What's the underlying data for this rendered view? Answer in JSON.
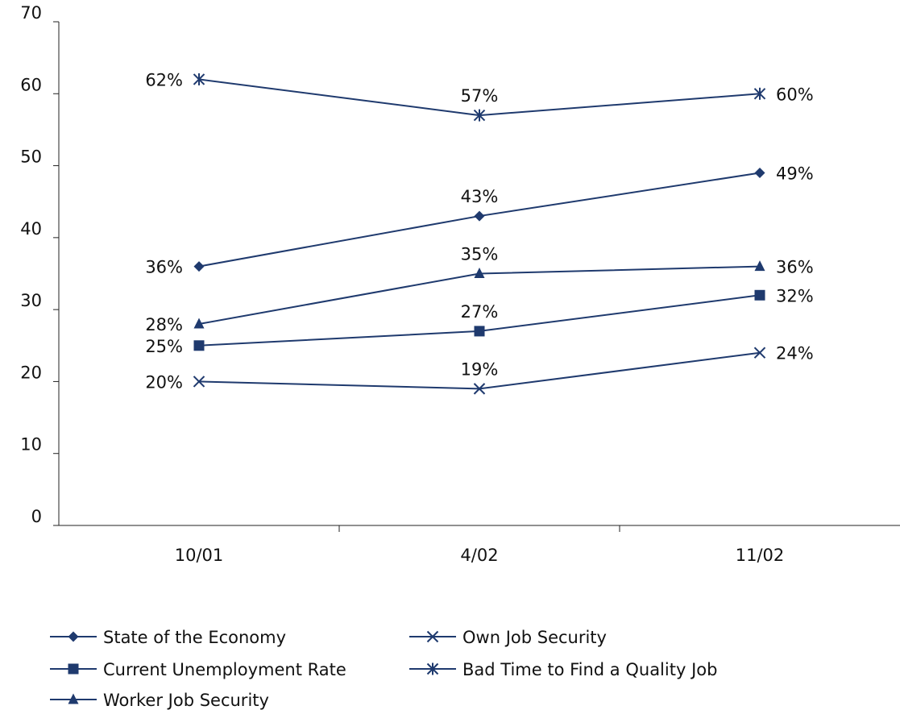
{
  "chart_data": {
    "type": "line",
    "title": "",
    "xlabel": "",
    "ylabel": "",
    "categories": [
      "10/01",
      "4/02",
      "11/02"
    ],
    "ylim": [
      0,
      70
    ],
    "yticks": [
      "0",
      "10",
      "20",
      "30",
      "40",
      "50",
      "60",
      "70"
    ],
    "grid": false,
    "legend_position": "bottom",
    "line_color": "#1f3a6e",
    "series": [
      {
        "name": "State of the Economy",
        "marker": "diamond",
        "values": [
          36,
          43,
          49
        ],
        "labels": [
          "36%",
          "43%",
          "49%"
        ]
      },
      {
        "name": "Current Unemployment Rate",
        "marker": "square",
        "values": [
          25,
          27,
          32
        ],
        "labels": [
          "25%",
          "27%",
          "32%"
        ]
      },
      {
        "name": "Worker Job Security",
        "marker": "triangle",
        "values": [
          28,
          35,
          36
        ],
        "labels": [
          "28%",
          "35%",
          "36%"
        ]
      },
      {
        "name": "Own Job Security",
        "marker": "x",
        "values": [
          20,
          19,
          24
        ],
        "labels": [
          "20%",
          "19%",
          "24%"
        ]
      },
      {
        "name": "Bad Time to Find a Quality Job",
        "marker": "asterisk",
        "values": [
          62,
          57,
          60
        ],
        "labels": [
          "62%",
          "57%",
          "60%"
        ]
      }
    ]
  }
}
